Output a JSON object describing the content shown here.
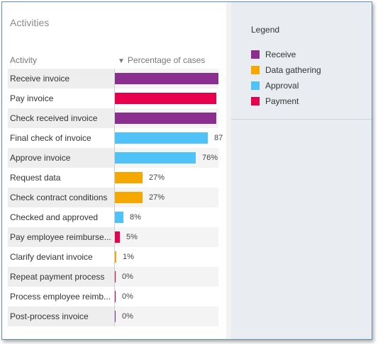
{
  "panel": {
    "title": "Activities",
    "col_activity": "Activity",
    "col_percentage": "Percentage of cases",
    "sort_glyph": "▼"
  },
  "legend": {
    "title": "Legend",
    "items": [
      {
        "label": "Receive",
        "color": "#8a2f8f"
      },
      {
        "label": "Data gathering",
        "color": "#f5a800"
      },
      {
        "label": "Approval",
        "color": "#4fc3f7"
      },
      {
        "label": "Payment",
        "color": "#e8004f"
      }
    ]
  },
  "colors": {
    "receive": "#8a2f8f",
    "data_gathering": "#f5a800",
    "approval": "#4fc3f7",
    "payment": "#e8004f"
  },
  "rows": [
    {
      "name": "Receive invoice",
      "pct": 100,
      "label": "",
      "color": "#8a2f8f"
    },
    {
      "name": "Pay invoice",
      "pct": 95,
      "label": "",
      "color": "#e8004f"
    },
    {
      "name": "Check received invoice",
      "pct": 95,
      "label": "",
      "color": "#8a2f8f"
    },
    {
      "name": "Final check of invoice",
      "pct": 87,
      "label": "87",
      "color": "#4fc3f7"
    },
    {
      "name": "Approve invoice",
      "pct": 76,
      "label": "76%",
      "color": "#4fc3f7"
    },
    {
      "name": "Request data",
      "pct": 27,
      "label": "27%",
      "color": "#f5a800"
    },
    {
      "name": "Check contract conditions",
      "pct": 27,
      "label": "27%",
      "color": "#f5a800"
    },
    {
      "name": "Checked and approved",
      "pct": 8,
      "label": "8%",
      "color": "#4fc3f7"
    },
    {
      "name": "Pay employee reimburse...",
      "pct": 5,
      "label": "5%",
      "color": "#e8004f"
    },
    {
      "name": "Clarify deviant invoice",
      "pct": 1,
      "label": "1%",
      "color": "#f5a800"
    },
    {
      "name": "Repeat payment process",
      "pct": 0,
      "label": "0%",
      "color": "#e8004f"
    },
    {
      "name": "Process employee reimb...",
      "pct": 0,
      "label": "0%",
      "color": "#e8004f"
    },
    {
      "name": "Post-process invoice",
      "pct": 0,
      "label": "0%",
      "color": "#8a2f8f"
    }
  ]
}
